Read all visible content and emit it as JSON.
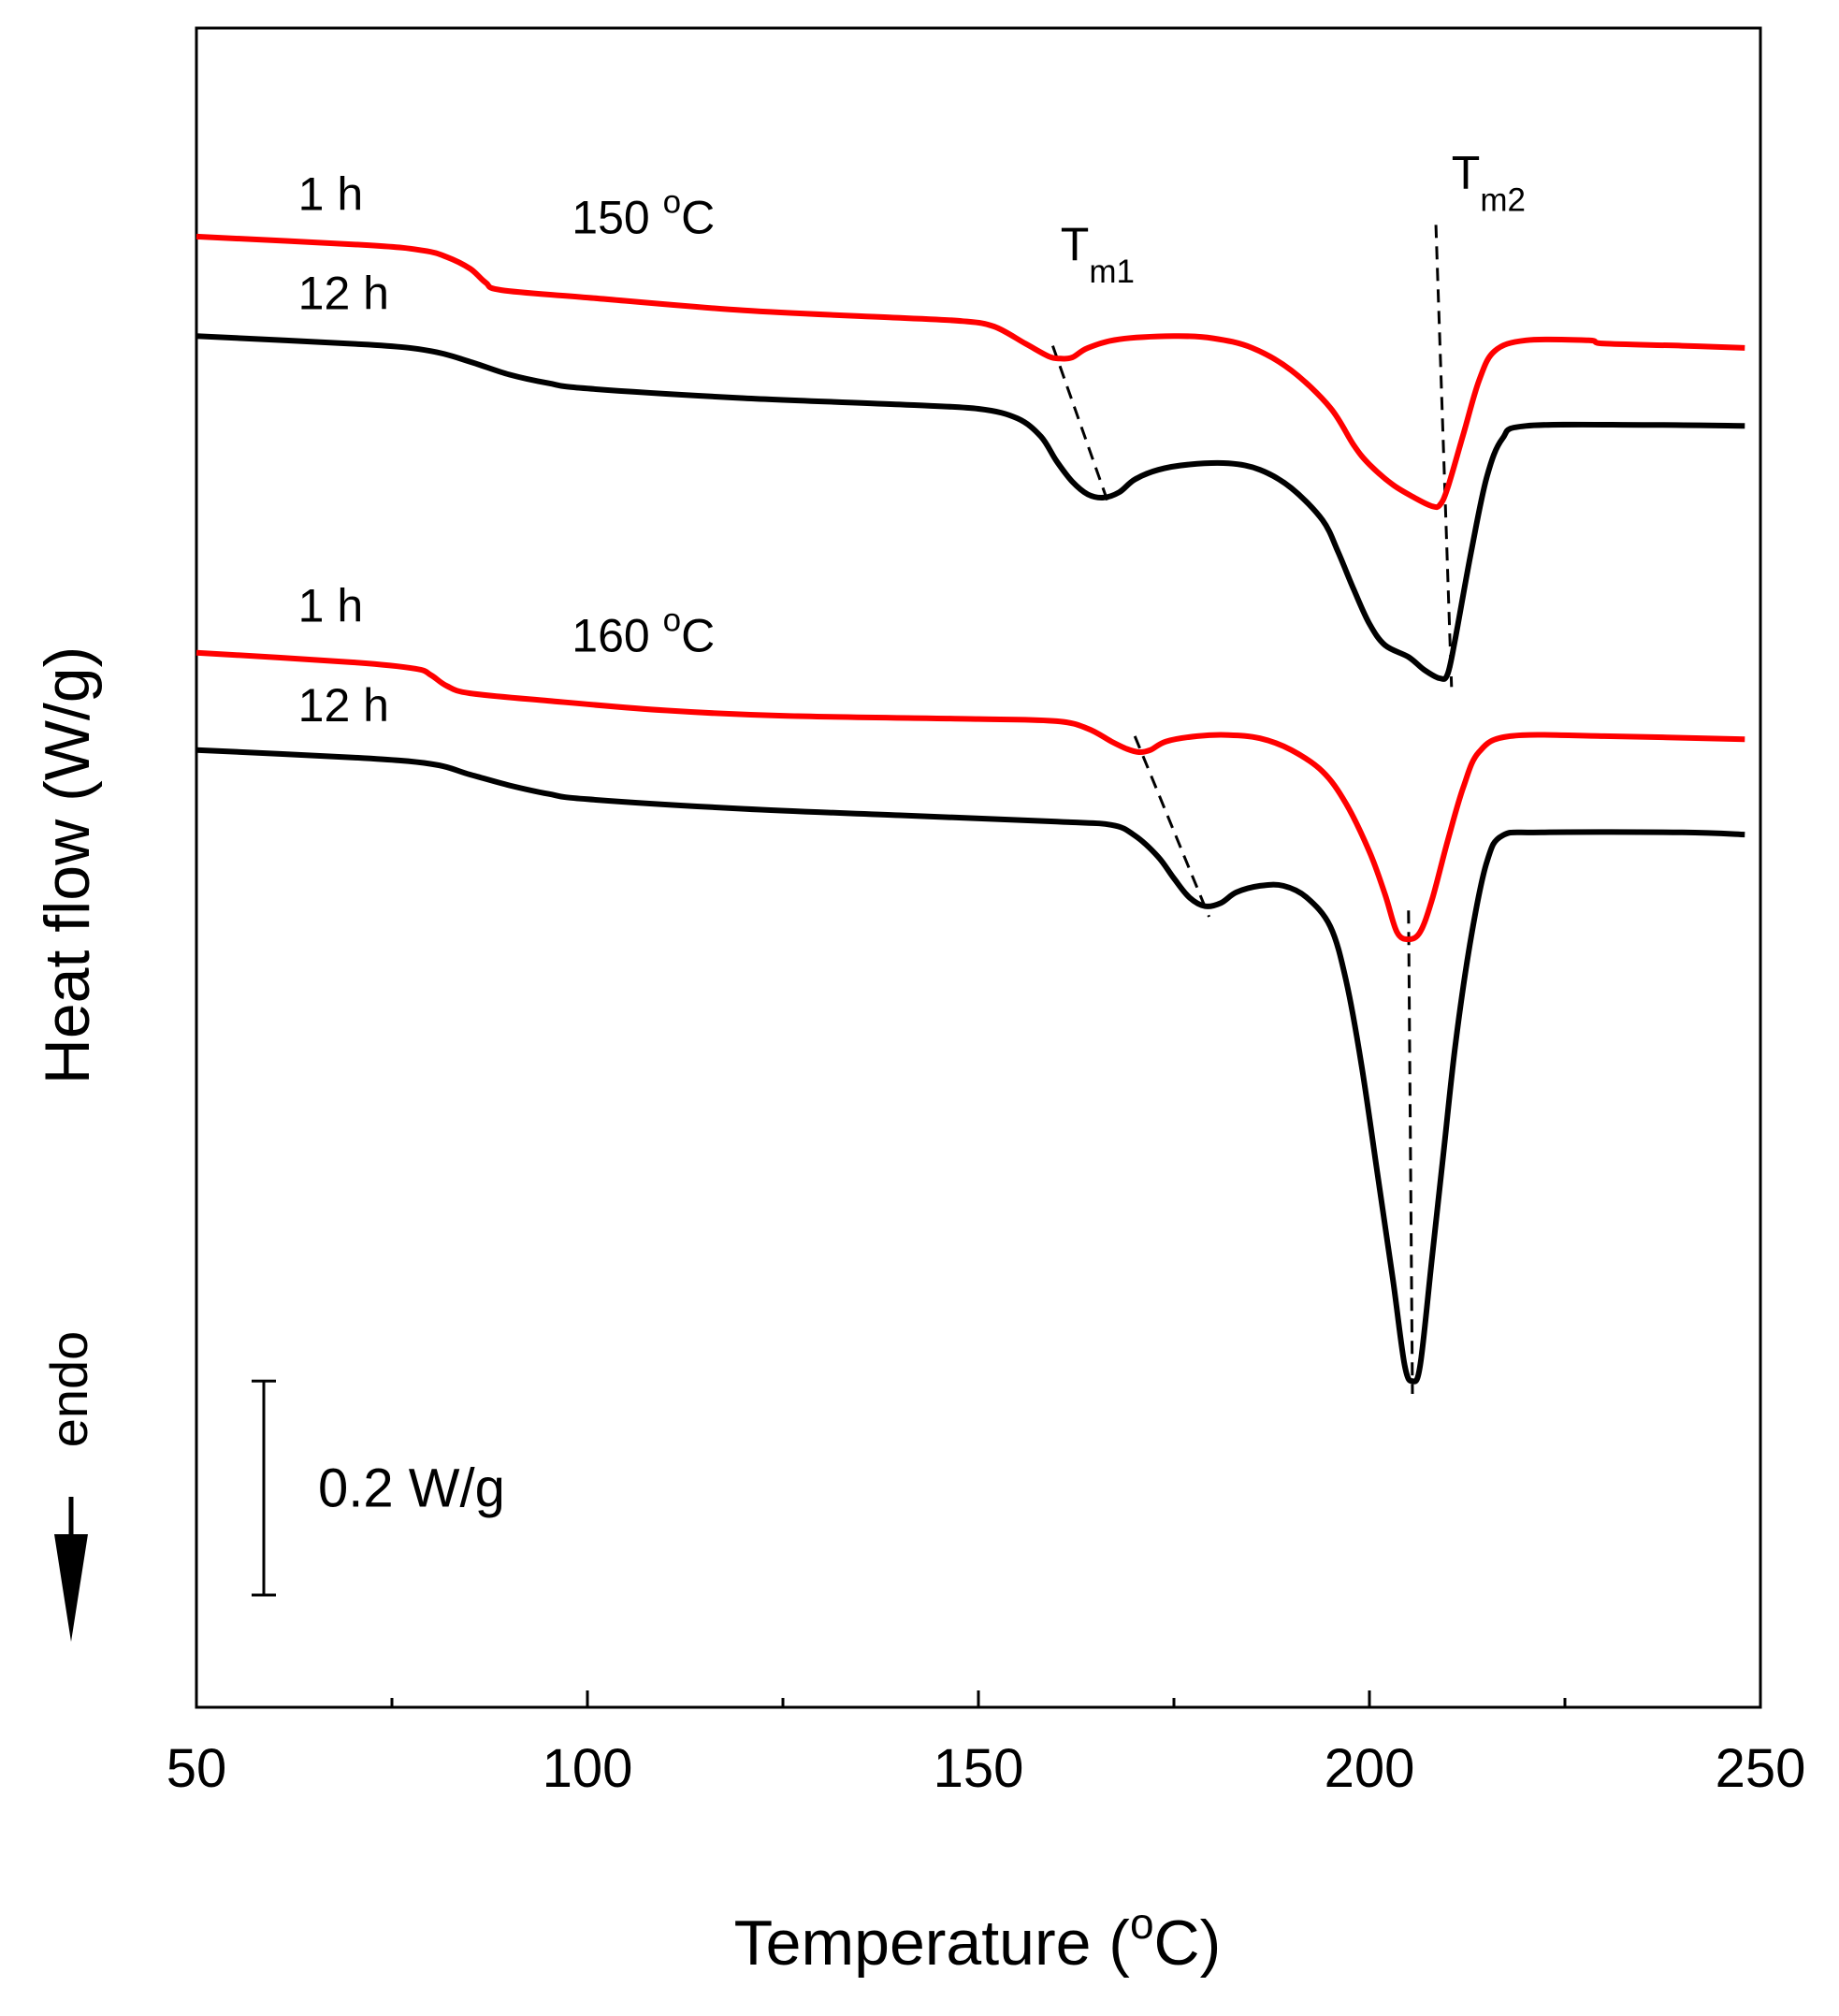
{
  "chart_data": {
    "type": "line",
    "title": "",
    "xlabel": "Temperature (",
    "xlabel_sup": "o",
    "xlabel_end": "C)",
    "ylabel": "Heat flow (W/g)",
    "xlim": [
      50,
      250
    ],
    "ylim": [
      0,
      1.57
    ],
    "x_ticks": [
      50,
      100,
      150,
      200,
      250
    ],
    "x_tick_labels": [
      "50",
      "100",
      "150",
      "200",
      "250"
    ],
    "x_minor_ticks": [
      75,
      125,
      175,
      225
    ],
    "colors": {
      "red": "#ff0000",
      "black": "#000000"
    },
    "endo_label": "endo",
    "scale_bar": {
      "label": "0.2 W/g",
      "value": 0.2,
      "y_bottom": 0.105
    },
    "series": [
      {
        "name": "1 h (150 °C)",
        "color": "#ff0000",
        "points": [
          [
            50,
            1.375
          ],
          [
            72,
            1.367
          ],
          [
            79,
            1.362
          ],
          [
            82,
            1.356
          ],
          [
            85,
            1.345
          ],
          [
            87,
            1.332
          ],
          [
            89,
            1.325
          ],
          [
            100,
            1.318
          ],
          [
            120,
            1.306
          ],
          [
            140,
            1.299
          ],
          [
            148,
            1.296
          ],
          [
            152,
            1.291
          ],
          [
            156,
            1.275
          ],
          [
            159,
            1.263
          ],
          [
            160.5,
            1.261
          ],
          [
            162,
            1.262
          ],
          [
            164,
            1.271
          ],
          [
            168,
            1.279
          ],
          [
            175,
            1.282
          ],
          [
            180,
            1.28
          ],
          [
            185,
            1.271
          ],
          [
            190,
            1.25
          ],
          [
            195,
            1.215
          ],
          [
            198,
            1.18
          ],
          [
            200,
            1.162
          ],
          [
            203,
            1.143
          ],
          [
            206,
            1.13
          ],
          [
            208,
            1.123
          ],
          [
            209,
            1.124
          ],
          [
            210,
            1.14
          ],
          [
            212,
            1.19
          ],
          [
            214,
            1.24
          ],
          [
            216,
            1.268
          ],
          [
            220,
            1.278
          ],
          [
            228,
            1.278
          ],
          [
            230,
            1.275
          ],
          [
            240,
            1.273
          ],
          [
            248,
            1.271
          ]
        ]
      },
      {
        "name": "12 h (150 °C)",
        "color": "#000000",
        "points": [
          [
            50,
            1.282
          ],
          [
            72,
            1.274
          ],
          [
            80,
            1.268
          ],
          [
            85,
            1.258
          ],
          [
            90,
            1.246
          ],
          [
            95,
            1.238
          ],
          [
            100,
            1.233
          ],
          [
            120,
            1.224
          ],
          [
            140,
            1.218
          ],
          [
            150,
            1.214
          ],
          [
            155,
            1.205
          ],
          [
            158,
            1.188
          ],
          [
            160,
            1.165
          ],
          [
            162,
            1.146
          ],
          [
            164,
            1.134
          ],
          [
            166,
            1.131
          ],
          [
            168,
            1.136
          ],
          [
            170,
            1.148
          ],
          [
            173,
            1.157
          ],
          [
            177,
            1.162
          ],
          [
            182,
            1.163
          ],
          [
            186,
            1.157
          ],
          [
            190,
            1.14
          ],
          [
            194,
            1.11
          ],
          [
            196,
            1.08
          ],
          [
            198,
            1.045
          ],
          [
            200,
            1.013
          ],
          [
            202,
            0.993
          ],
          [
            205,
            0.982
          ],
          [
            207,
            0.97
          ],
          [
            209,
            0.962
          ],
          [
            210,
            0.966
          ],
          [
            211,
            1.0
          ],
          [
            213,
            1.08
          ],
          [
            215,
            1.15
          ],
          [
            217,
            1.186
          ],
          [
            220,
            1.198
          ],
          [
            235,
            1.199
          ],
          [
            248,
            1.198
          ]
        ]
      },
      {
        "name": "1 h (160 °C)",
        "color": "#ff0000",
        "points": [
          [
            50,
            0.986
          ],
          [
            70,
            0.977
          ],
          [
            78,
            0.971
          ],
          [
            80,
            0.965
          ],
          [
            82,
            0.955
          ],
          [
            85,
            0.948
          ],
          [
            95,
            0.941
          ],
          [
            110,
            0.932
          ],
          [
            125,
            0.927
          ],
          [
            150,
            0.924
          ],
          [
            160,
            0.922
          ],
          [
            164,
            0.915
          ],
          [
            167,
            0.903
          ],
          [
            169,
            0.896
          ],
          [
            170.5,
            0.893
          ],
          [
            172,
            0.895
          ],
          [
            174,
            0.903
          ],
          [
            178,
            0.908
          ],
          [
            182,
            0.909
          ],
          [
            186,
            0.906
          ],
          [
            190,
            0.895
          ],
          [
            194,
            0.875
          ],
          [
            197,
            0.845
          ],
          [
            200,
            0.8
          ],
          [
            202,
            0.76
          ],
          [
            203.5,
            0.725
          ],
          [
            205,
            0.718
          ],
          [
            206.5,
            0.725
          ],
          [
            208,
            0.755
          ],
          [
            210,
            0.81
          ],
          [
            212,
            0.86
          ],
          [
            214,
            0.893
          ],
          [
            218,
            0.908
          ],
          [
            230,
            0.908
          ],
          [
            248,
            0.905
          ]
        ]
      },
      {
        "name": "12 h (160 °C)",
        "color": "#000000",
        "points": [
          [
            50,
            0.895
          ],
          [
            70,
            0.888
          ],
          [
            80,
            0.882
          ],
          [
            85,
            0.872
          ],
          [
            90,
            0.862
          ],
          [
            95,
            0.854
          ],
          [
            100,
            0.849
          ],
          [
            120,
            0.84
          ],
          [
            140,
            0.834
          ],
          [
            160,
            0.828
          ],
          [
            167,
            0.825
          ],
          [
            170,
            0.815
          ],
          [
            173,
            0.795
          ],
          [
            175,
            0.775
          ],
          [
            177,
            0.757
          ],
          [
            179,
            0.749
          ],
          [
            181,
            0.752
          ],
          [
            183,
            0.762
          ],
          [
            186,
            0.768
          ],
          [
            189,
            0.768
          ],
          [
            192,
            0.757
          ],
          [
            195,
            0.73
          ],
          [
            197,
            0.68
          ],
          [
            199,
            0.6
          ],
          [
            201,
            0.5
          ],
          [
            203,
            0.4
          ],
          [
            204.5,
            0.32
          ],
          [
            205.5,
            0.305
          ],
          [
            206.5,
            0.32
          ],
          [
            208,
            0.42
          ],
          [
            209.5,
            0.52
          ],
          [
            211,
            0.62
          ],
          [
            213,
            0.72
          ],
          [
            215,
            0.79
          ],
          [
            217,
            0.815
          ],
          [
            222,
            0.818
          ],
          [
            240,
            0.818
          ],
          [
            248,
            0.816
          ]
        ]
      }
    ],
    "guide_lines": [
      {
        "name": "Tm1 guide (150)",
        "from": [
          159.5,
          1.273
        ],
        "to": [
          166.5,
          1.128
        ]
      },
      {
        "name": "Tm2 guide (150)",
        "from": [
          208.5,
          1.386
        ],
        "to": [
          210.5,
          0.954
        ]
      },
      {
        "name": "Tm1 guide (160)",
        "from": [
          170,
          0.908
        ],
        "to": [
          179.5,
          0.739
        ]
      },
      {
        "name": "Tm2 guide (160)",
        "from": [
          205,
          0.745
        ],
        "to": [
          205.5,
          0.293
        ]
      }
    ],
    "annotations": [
      {
        "name": "label-1h-150",
        "text": "1 h",
        "x": 63,
        "y": 1.4,
        "size": 50
      },
      {
        "name": "label-12h-150",
        "text": "12 h",
        "x": 63,
        "y": 1.307,
        "size": 50
      },
      {
        "name": "label-150C",
        "text": "150 ",
        "sup": "o",
        "end": "C",
        "x": 98,
        "y": 1.378,
        "size": 50
      },
      {
        "name": "label-1h-160",
        "text": "1 h",
        "x": 63,
        "y": 1.015,
        "size": 50
      },
      {
        "name": "label-12h-160",
        "text": "12 h",
        "x": 63,
        "y": 0.922,
        "size": 50
      },
      {
        "name": "label-160C",
        "text": "160 ",
        "sup": "o",
        "end": "C",
        "x": 98,
        "y": 0.987,
        "size": 50
      },
      {
        "name": "label-tm1",
        "text": "T",
        "sub": "m1",
        "x": 160.5,
        "y": 1.353,
        "size": 50
      },
      {
        "name": "label-tm2",
        "text": "T",
        "sub": "m2",
        "x": 210.5,
        "y": 1.42,
        "size": 50
      }
    ]
  }
}
